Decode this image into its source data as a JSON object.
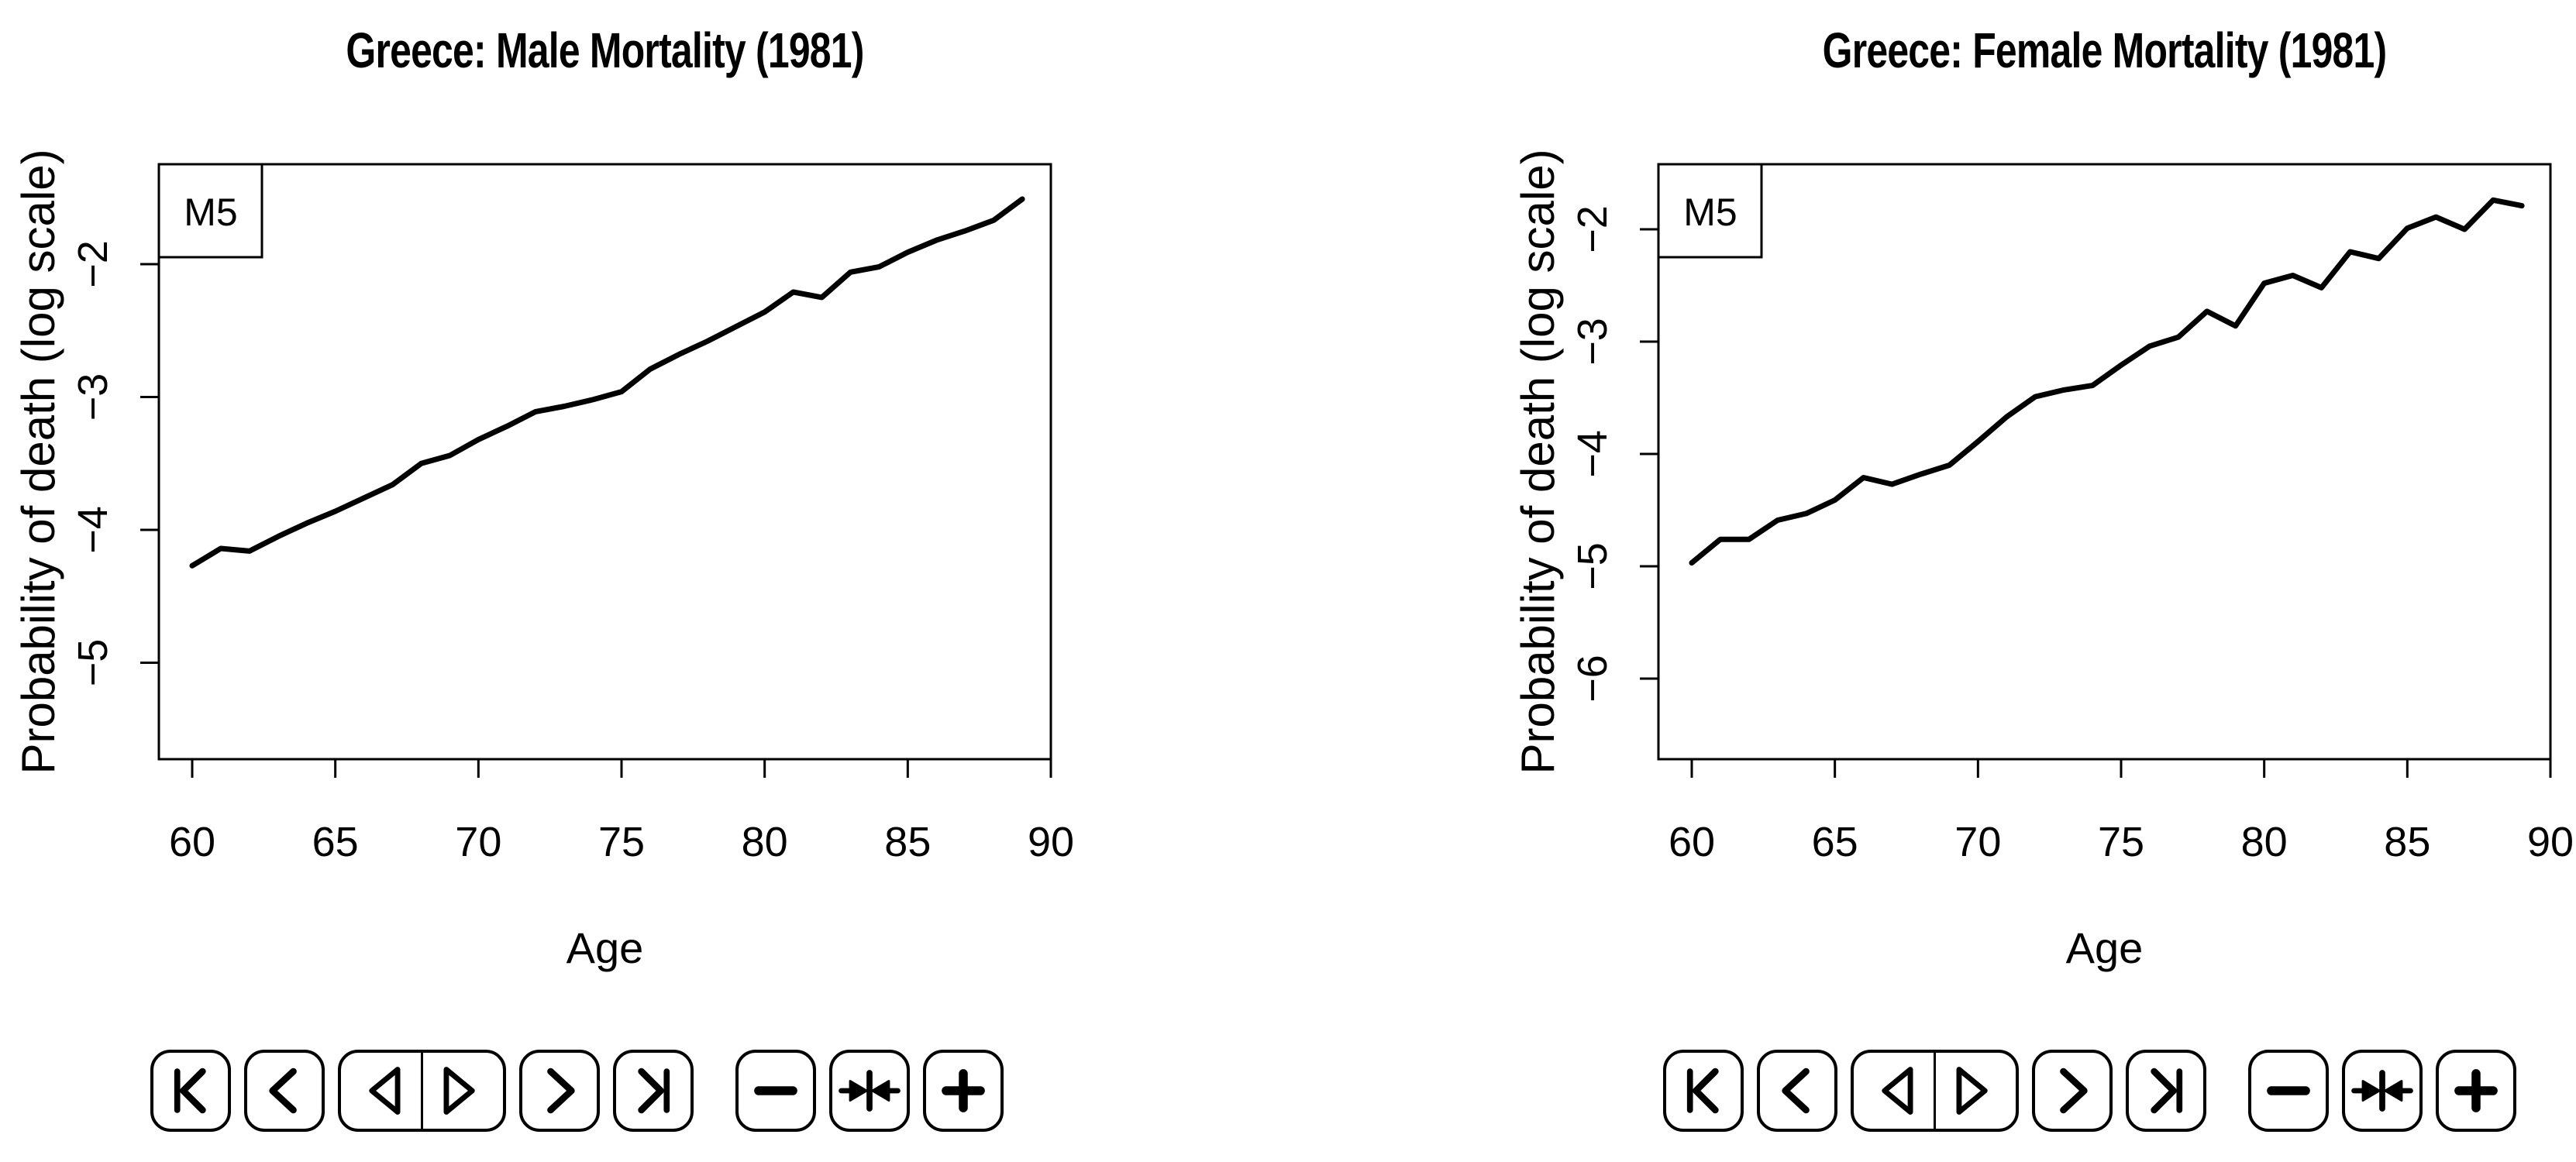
{
  "page": {
    "background": "#ffffff",
    "foreground": "#000000"
  },
  "chart_data": [
    {
      "type": "line",
      "title": "Greece: Male Mortality (1981)",
      "xlabel": "Age",
      "ylabel": "Probability of death (log scale)",
      "legend_label": "M5",
      "legend_position": "top-left",
      "grid": false,
      "line_color": "#000000",
      "xlim": [
        58.8,
        90
      ],
      "ylim_drawn": [
        -5.7,
        -1.25
      ],
      "xticks": [
        60,
        65,
        70,
        75,
        80,
        85,
        90
      ],
      "yticks": [
        -2,
        -3,
        -4,
        -5
      ],
      "x": [
        60,
        61,
        62,
        63,
        64,
        65,
        66,
        67,
        68,
        69,
        70,
        71,
        72,
        73,
        74,
        75,
        76,
        77,
        78,
        79,
        80,
        81,
        82,
        83,
        84,
        85,
        86,
        87,
        88,
        89
      ],
      "values": [
        -4.27,
        -4.14,
        -4.16,
        -4.05,
        -3.95,
        -3.86,
        -3.76,
        -3.66,
        -3.5,
        -3.44,
        -3.32,
        -3.22,
        -3.11,
        -3.07,
        -3.02,
        -2.96,
        -2.79,
        -2.68,
        -2.58,
        -2.47,
        -2.36,
        -2.21,
        -2.25,
        -2.06,
        -2.02,
        -1.91,
        -1.82,
        -1.75,
        -1.67,
        -1.51
      ]
    },
    {
      "type": "line",
      "title": "Greece: Female Mortality (1981)",
      "xlabel": "Age",
      "ylabel": "Probability of death (log scale)",
      "legend_label": "M5",
      "legend_position": "top-left",
      "grid": false,
      "line_color": "#000000",
      "xlim": [
        58.8,
        90
      ],
      "ylim_drawn": [
        -6.7,
        -1.4
      ],
      "xticks": [
        60,
        65,
        70,
        75,
        80,
        85,
        90
      ],
      "yticks": [
        -2,
        -3,
        -4,
        -5,
        -6
      ],
      "x": [
        60,
        61,
        62,
        63,
        64,
        65,
        66,
        67,
        68,
        69,
        70,
        71,
        72,
        73,
        74,
        75,
        76,
        77,
        78,
        79,
        80,
        81,
        82,
        83,
        84,
        85,
        86,
        87,
        88,
        89
      ],
      "values": [
        -4.97,
        -4.76,
        -4.76,
        -4.59,
        -4.53,
        -4.41,
        -4.21,
        -4.27,
        -4.18,
        -4.1,
        -3.89,
        -3.67,
        -3.49,
        -3.43,
        -3.39,
        -3.21,
        -3.04,
        -2.96,
        -2.73,
        -2.86,
        -2.48,
        -2.41,
        -2.52,
        -2.2,
        -2.26,
        -1.99,
        -1.89,
        -2.0,
        -1.74,
        -1.79
      ]
    }
  ],
  "controls": {
    "buttons": [
      {
        "id": "first",
        "icon": "skip-to-first-icon"
      },
      {
        "id": "previous",
        "icon": "chevron-left-icon"
      },
      {
        "id": "step-back",
        "icon": "open-triangle-left-icon"
      },
      {
        "id": "step-forward",
        "icon": "open-triangle-right-icon"
      },
      {
        "id": "next",
        "icon": "chevron-right-icon"
      },
      {
        "id": "last",
        "icon": "skip-to-last-icon"
      },
      {
        "id": "zoom-out",
        "icon": "minus-icon"
      },
      {
        "id": "center",
        "icon": "collapse-horizontal-icon"
      },
      {
        "id": "zoom-in",
        "icon": "plus-icon"
      }
    ]
  }
}
